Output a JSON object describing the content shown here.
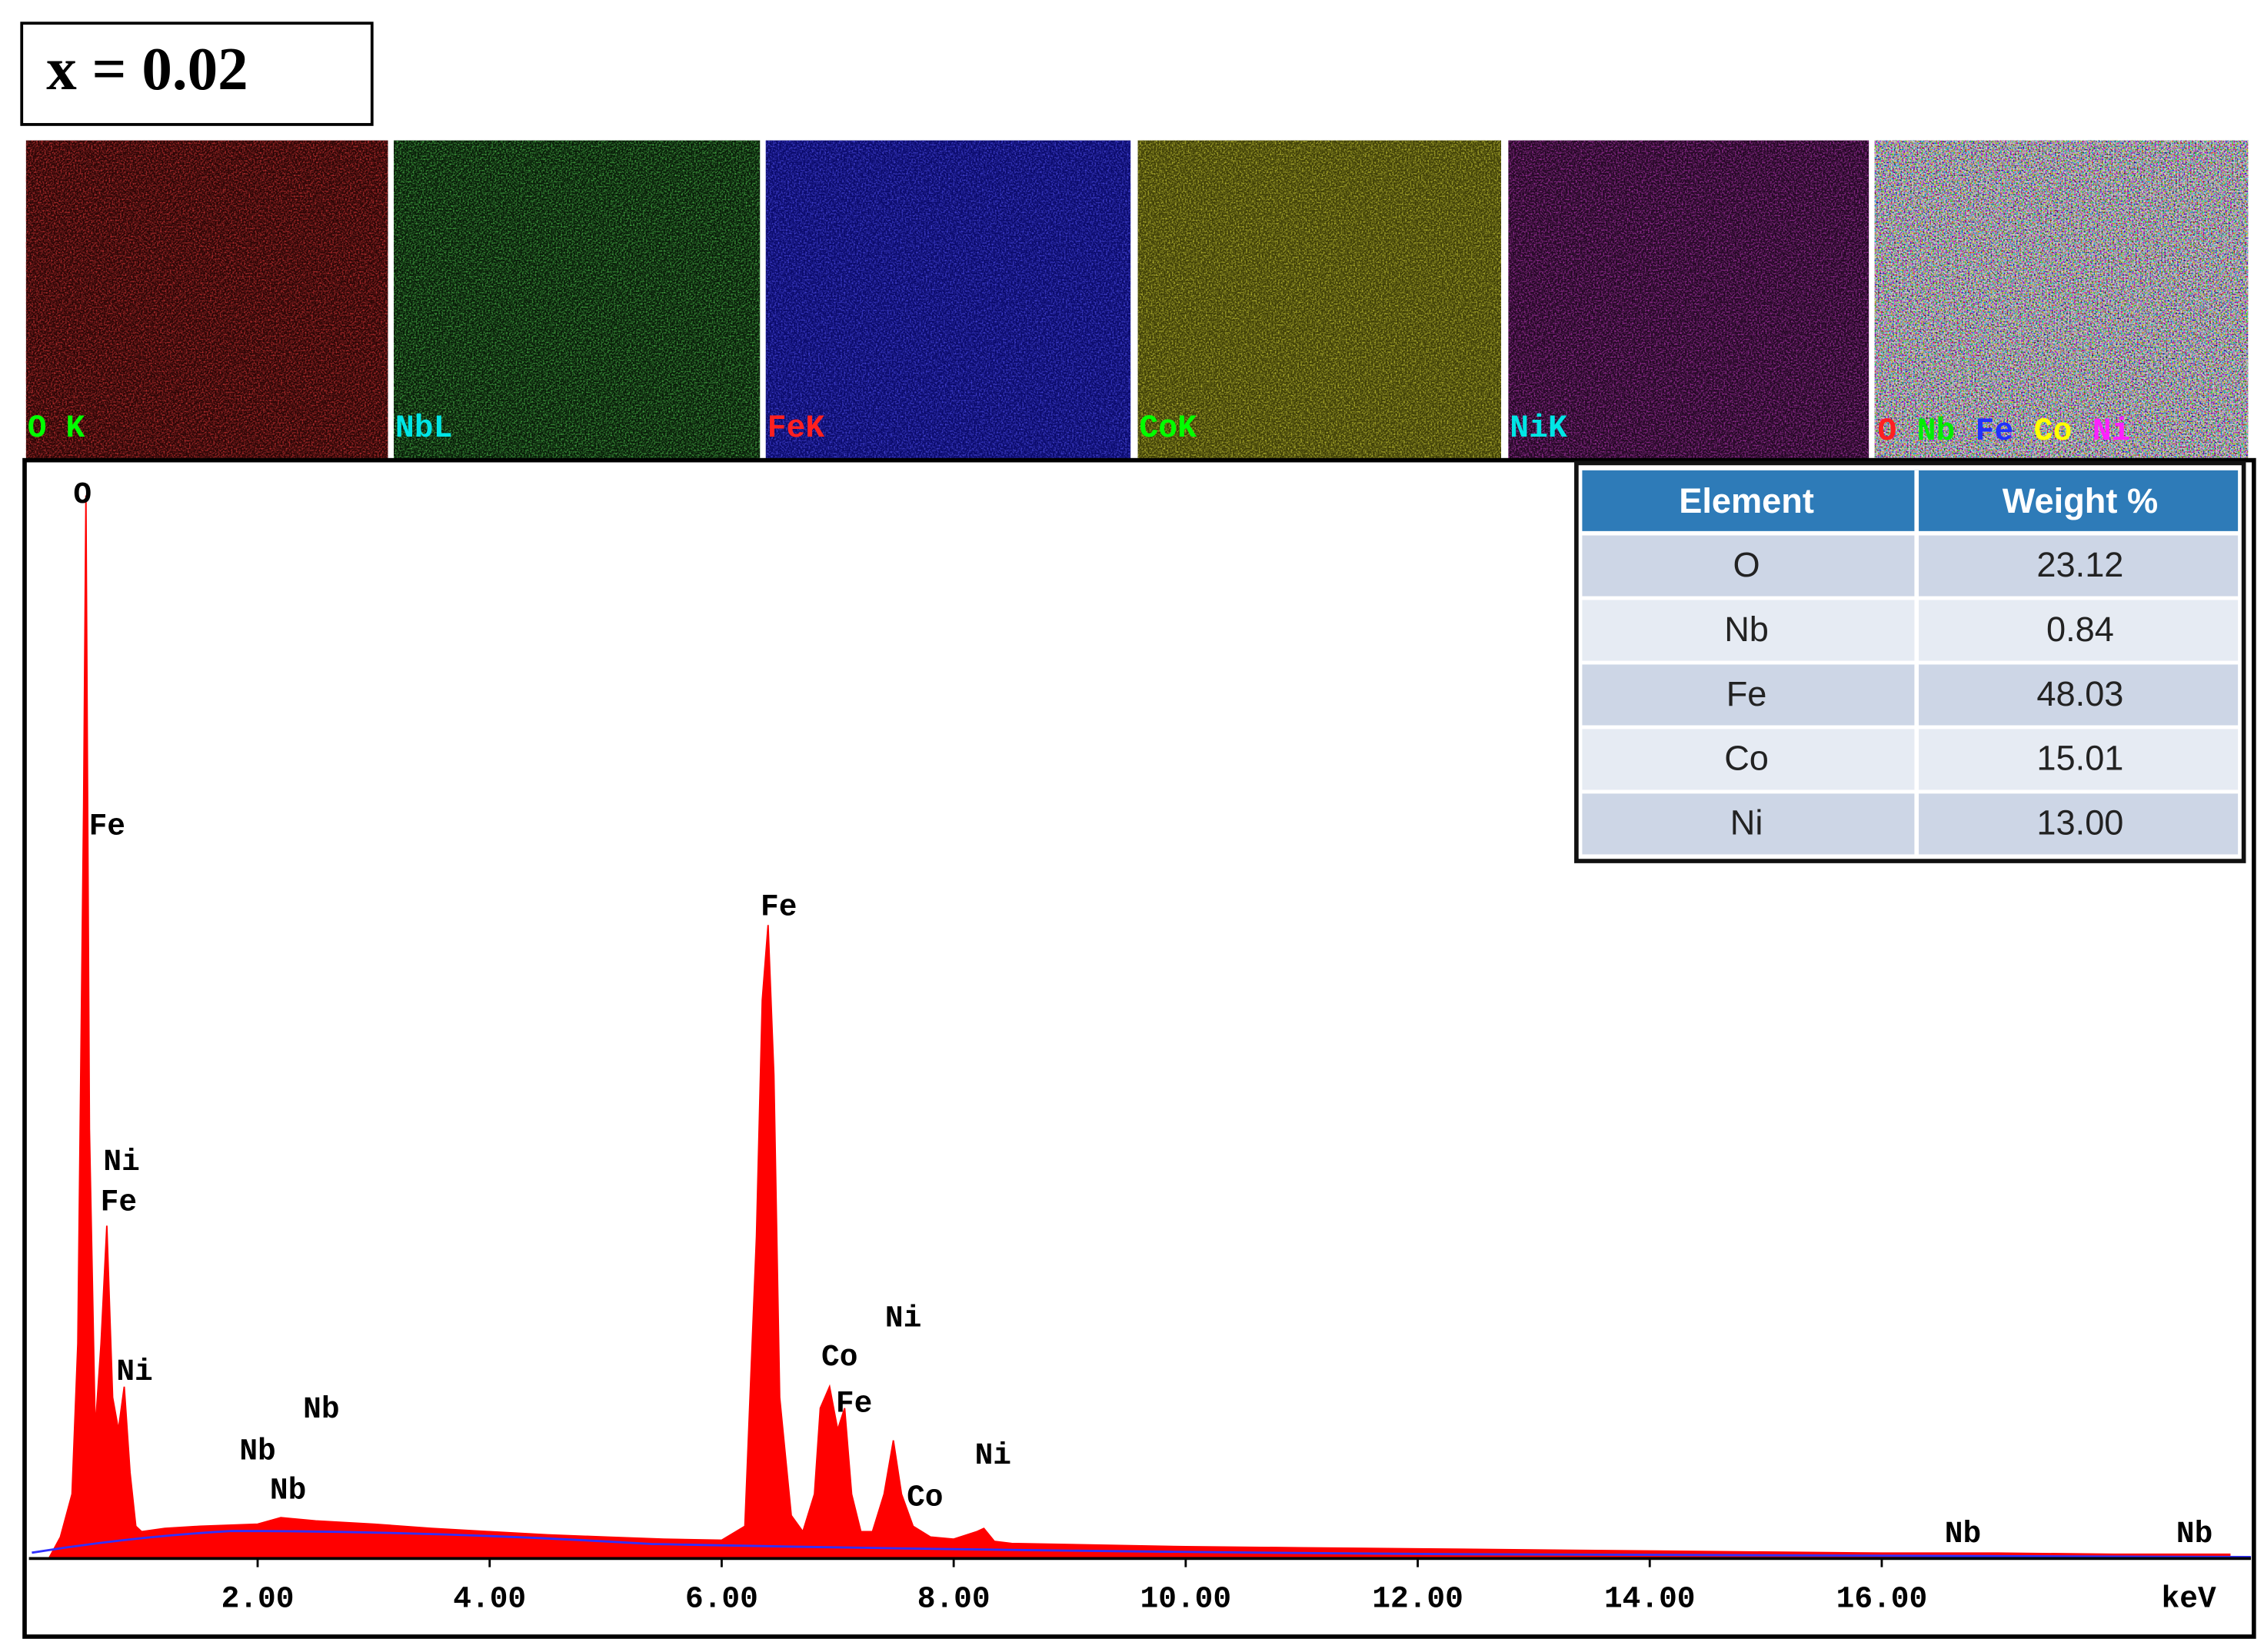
{
  "label": "x = 0.02",
  "maps": [
    "O K",
    "NbL",
    "FeK",
    "CoK",
    "NiK"
  ],
  "composite_map_labels": [
    "O",
    "Nb",
    "Fe",
    "Co",
    "Ni"
  ],
  "table": {
    "header": [
      "Element",
      "Weight %"
    ],
    "rows": [
      [
        "O",
        "23.12"
      ],
      [
        "Nb",
        "0.84"
      ],
      [
        "Fe",
        "48.03"
      ],
      [
        "Co",
        "15.01"
      ],
      [
        "Ni",
        "13.00"
      ]
    ]
  },
  "chart_data": {
    "type": "area",
    "x": [
      0.2,
      0.3,
      0.4,
      0.45,
      0.5,
      0.52,
      0.55,
      0.6,
      0.65,
      0.7,
      0.75,
      0.8,
      0.85,
      0.9,
      0.95,
      1.0,
      1.2,
      1.5,
      2.0,
      2.2,
      2.5,
      3.0,
      3.5,
      4.0,
      4.5,
      5.0,
      5.5,
      6.0,
      6.2,
      6.3,
      6.35,
      6.4,
      6.45,
      6.5,
      6.6,
      6.7,
      6.8,
      6.85,
      6.93,
      7.0,
      7.06,
      7.12,
      7.2,
      7.3,
      7.4,
      7.48,
      7.55,
      7.65,
      7.8,
      8.0,
      8.2,
      8.26,
      8.35,
      8.5,
      9,
      10,
      11,
      12,
      13,
      14,
      15,
      16,
      17,
      18,
      19
    ],
    "values": [
      0,
      2,
      6,
      20,
      70,
      99,
      40,
      12,
      20,
      31,
      15,
      12,
      16,
      8,
      3,
      2.5,
      2.8,
      3,
      3.2,
      3.8,
      3.5,
      3.2,
      2.8,
      2.5,
      2.2,
      2,
      1.8,
      1.7,
      3,
      30,
      52,
      59,
      45,
      15,
      4,
      2.5,
      6,
      14,
      16,
      12,
      14,
      6,
      2.5,
      2.5,
      6,
      11,
      6,
      3,
      2,
      1.8,
      2.5,
      2.8,
      1.6,
      1.4,
      1.3,
      1.1,
      1,
      0.9,
      0.8,
      0.7,
      0.6,
      0.5,
      0.5,
      0.4,
      0.4
    ],
    "color": "#ff0000",
    "xlim": [
      0,
      19.2
    ],
    "ylim": [
      0,
      100
    ],
    "xticks": [
      {
        "value": 2,
        "label": "2.00"
      },
      {
        "value": 4,
        "label": "4.00"
      },
      {
        "value": 6,
        "label": "6.00"
      },
      {
        "value": 8,
        "label": "8.00"
      },
      {
        "value": 10,
        "label": "10.00"
      },
      {
        "value": 12,
        "label": "12.00"
      },
      {
        "value": 14,
        "label": "14.00"
      },
      {
        "value": 16,
        "label": "16.00"
      }
    ],
    "x_label": "keV",
    "annotations": [
      "O",
      "Fe",
      "Ni",
      "Fe",
      "Ni",
      "Nb",
      "Nb",
      "Nb",
      "Fe",
      "Co",
      "Ni",
      "Fe",
      "Ni",
      "Co",
      "Nb",
      "Nb"
    ]
  }
}
